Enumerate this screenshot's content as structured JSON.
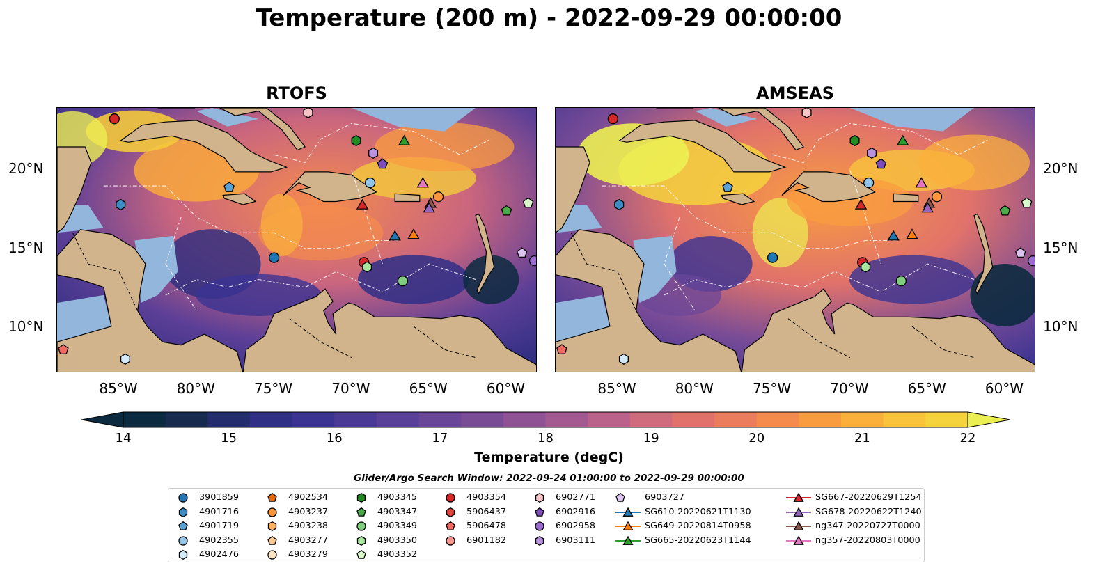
{
  "title": "Temperature (200 m) - 2022-09-29 00:00:00",
  "panels": [
    {
      "title": "RTOFS"
    },
    {
      "title": "AMSEAS"
    }
  ],
  "axes": {
    "x_ticks": [
      "85°W",
      "80°W",
      "75°W",
      "70°W",
      "65°W",
      "60°W"
    ],
    "y_ticks": [
      "20°N",
      "15°N",
      "10°N"
    ]
  },
  "colorbar": {
    "label": "Temperature (degC)",
    "min": 14,
    "max": 22,
    "ticks": [
      "14",
      "15",
      "16",
      "17",
      "18",
      "19",
      "20",
      "21",
      "22"
    ],
    "colors": [
      "#0c2a3f",
      "#162b4e",
      "#232c6c",
      "#2f2f86",
      "#3a3392",
      "#4a3a96",
      "#583f97",
      "#694698",
      "#7a4c96",
      "#8e5295",
      "#a45a90",
      "#bb628a",
      "#cf6b7c",
      "#e0726b",
      "#ec7d5c",
      "#f58b4d",
      "#f99c40",
      "#fbb03c",
      "#f9c43c",
      "#f4d33c",
      "#ecef52"
    ]
  },
  "search_window": "Glider/Argo Search Window: 2022-09-24 01:00:00 to 2022-09-29 00:00:00",
  "legend": {
    "columns": [
      [
        {
          "label": "3901859",
          "color": "#1f77b4",
          "shape": "circle"
        },
        {
          "label": "4901716",
          "color": "#3b8cc4",
          "shape": "hexagon"
        },
        {
          "label": "4901719",
          "color": "#5aa2d6",
          "shape": "pentagon"
        },
        {
          "label": "4902355",
          "color": "#93c4e6",
          "shape": "circle"
        },
        {
          "label": "4902476",
          "color": "#d4ecfa",
          "shape": "hexagon"
        }
      ],
      [
        {
          "label": "4902534",
          "color": "#e56a0c",
          "shape": "pentagon"
        },
        {
          "label": "4903237",
          "color": "#ff9438",
          "shape": "circle"
        },
        {
          "label": "4903238",
          "color": "#ffb061",
          "shape": "hexagon"
        },
        {
          "label": "4903277",
          "color": "#ffca90",
          "shape": "pentagon"
        },
        {
          "label": "4903279",
          "color": "#ffe4c4",
          "shape": "circle"
        }
      ],
      [
        {
          "label": "4903345",
          "color": "#228b22",
          "shape": "hexagon"
        },
        {
          "label": "4903347",
          "color": "#4bab4b",
          "shape": "pentagon"
        },
        {
          "label": "4903349",
          "color": "#7fcd7f",
          "shape": "circle"
        },
        {
          "label": "4903350",
          "color": "#a8e6a0",
          "shape": "hexagon"
        },
        {
          "label": "4903352",
          "color": "#d8f8cc",
          "shape": "pentagon"
        }
      ],
      [
        {
          "label": "4903354",
          "color": "#d62728",
          "shape": "circle"
        },
        {
          "label": "5906437",
          "color": "#e2433f",
          "shape": "hexagon"
        },
        {
          "label": "5906478",
          "color": "#f06a62",
          "shape": "pentagon"
        },
        {
          "label": "6901182",
          "color": "#f89690",
          "shape": "circle"
        }
      ],
      [
        {
          "label": "6902771",
          "color": "#f9c4c8",
          "shape": "hexagon"
        },
        {
          "label": "6902916",
          "color": "#7f4dbb",
          "shape": "pentagon"
        },
        {
          "label": "6902958",
          "color": "#9b6bd0",
          "shape": "circle"
        },
        {
          "label": "6903111",
          "color": "#b892dc",
          "shape": "hexagon"
        }
      ],
      [
        {
          "label": "6903727",
          "color": "#dcc4f0",
          "shape": "pentagon"
        },
        {
          "label": "SG610-20220621T1130",
          "color": "#1f77b4",
          "shape": "triangle-line"
        },
        {
          "label": "SG649-20220814T0958",
          "color": "#ff7f0e",
          "shape": "triangle-line"
        },
        {
          "label": "SG665-20220623T1144",
          "color": "#2ca02c",
          "shape": "triangle-line"
        }
      ],
      [
        {
          "label": "SG667-20220629T1254",
          "color": "#d62728",
          "shape": "triangle-line"
        },
        {
          "label": "SG678-20220622T1240",
          "color": "#9467bd",
          "shape": "triangle-line"
        },
        {
          "label": "ng347-20220727T0000",
          "color": "#8c564b",
          "shape": "triangle-line"
        },
        {
          "label": "ng357-20220803T0000",
          "color": "#e377c2",
          "shape": "triangle-line"
        }
      ]
    ]
  },
  "markers": [
    {
      "id": "4903354",
      "lon": -85.3,
      "lat": 23.3
    },
    {
      "id": "6902771",
      "lon": -72.8,
      "lat": 23.7
    },
    {
      "id": "4903345",
      "lon": -69.7,
      "lat": 21.9
    },
    {
      "id": "SG665-20220623T1144",
      "lon": -66.6,
      "lat": 21.9
    },
    {
      "id": "6903111",
      "lon": -68.6,
      "lat": 21.1
    },
    {
      "id": "6902916",
      "lon": -68.0,
      "lat": 20.4
    },
    {
      "id": "4902355",
      "lon": -68.8,
      "lat": 19.2
    },
    {
      "id": "ng357-20220803T0000",
      "lon": -65.4,
      "lat": 19.2
    },
    {
      "id": "4903237",
      "lon": -64.4,
      "lat": 18.3
    },
    {
      "id": "ng347-20220727T0000",
      "lon": -64.9,
      "lat": 17.9
    },
    {
      "id": "SG678-20220622T1240",
      "lon": -65.0,
      "lat": 17.6
    },
    {
      "id": "SG667-20220629T1254",
      "lon": -69.3,
      "lat": 17.8
    },
    {
      "id": "4901719",
      "lon": -77.9,
      "lat": 18.9
    },
    {
      "id": "4901716",
      "lon": -84.9,
      "lat": 17.8
    },
    {
      "id": "4903347",
      "lon": -60.0,
      "lat": 17.4
    },
    {
      "id": "4903352",
      "lon": -58.6,
      "lat": 17.9
    },
    {
      "id": "SG610-20220621T1130",
      "lon": -67.2,
      "lat": 15.8
    },
    {
      "id": "SG649-20220814T0958",
      "lon": -66.0,
      "lat": 15.9
    },
    {
      "id": "6903727",
      "lon": -59.0,
      "lat": 14.7
    },
    {
      "id": "3901859",
      "lon": -75.0,
      "lat": 14.4
    },
    {
      "id": "4903354b",
      "lon": -69.2,
      "lat": 14.1
    },
    {
      "id": "4903350",
      "lon": -69.0,
      "lat": 13.8
    },
    {
      "id": "4903349",
      "lon": -66.7,
      "lat": 12.9
    },
    {
      "id": "6902958",
      "lon": -58.2,
      "lat": 14.2
    },
    {
      "id": "5906478",
      "lon": -88.6,
      "lat": 8.5
    },
    {
      "id": "4902476",
      "lon": -84.6,
      "lat": 7.9
    }
  ]
}
